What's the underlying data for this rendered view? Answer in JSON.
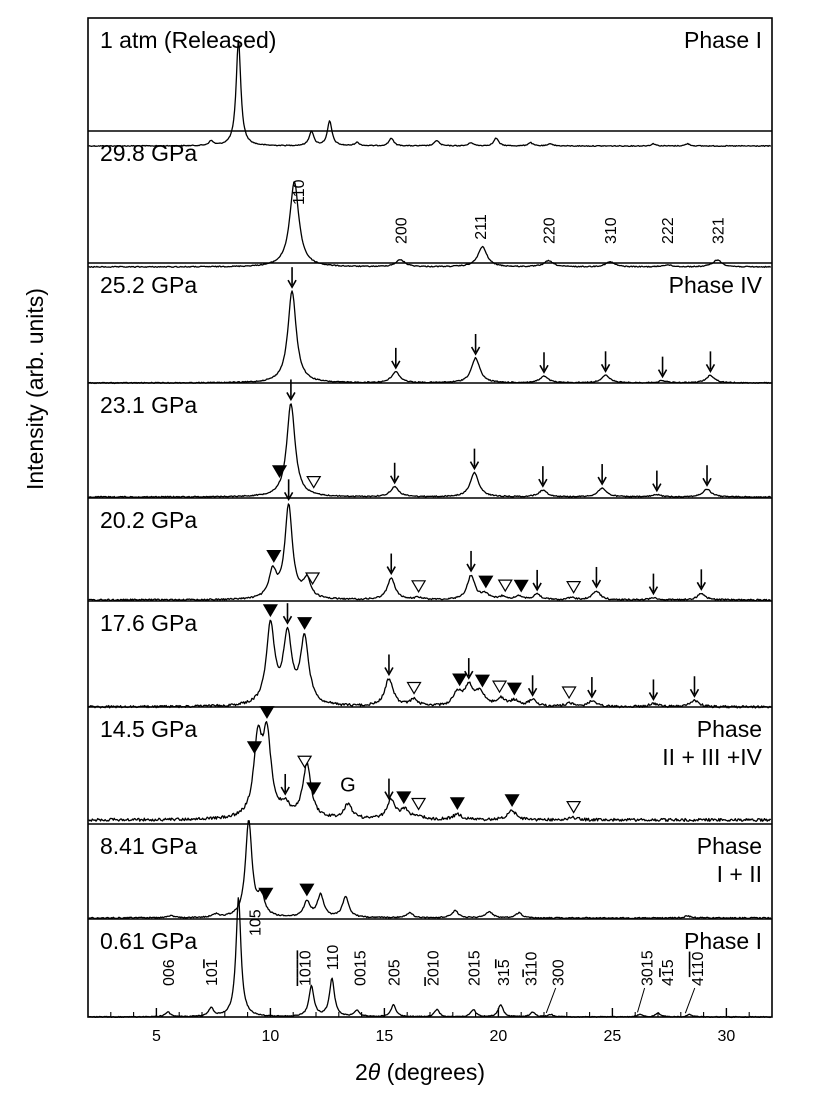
{
  "figure": {
    "ylabel": "Intensity (arb. units)",
    "xlabel_prefix": "2",
    "xlabel_theta": "θ",
    "xlabel_suffix": " (degrees)"
  },
  "chart_data": {
    "type": "line",
    "title": "",
    "xlabel": "2θ (degrees)",
    "ylabel": "Intensity (arb. units)",
    "xlim": [
      2,
      32
    ],
    "x_ticks": [
      5,
      10,
      15,
      20,
      25,
      30
    ],
    "x_tick_labels": [
      "5",
      "10",
      "15",
      "20",
      "25",
      "30"
    ],
    "series": [
      {
        "name": "1 atm (Released)",
        "phase": [
          "Phase I"
        ],
        "peaks": [
          [
            7.4,
            0.04
          ],
          [
            8.6,
            0.95
          ],
          [
            11.8,
            0.13
          ],
          [
            12.6,
            0.22
          ],
          [
            13.8,
            0.03
          ],
          [
            15.3,
            0.07
          ],
          [
            17.3,
            0.05
          ],
          [
            18.8,
            0.03
          ],
          [
            19.9,
            0.07
          ],
          [
            21.4,
            0.03
          ],
          [
            22.3,
            0.02
          ],
          [
            26.8,
            0.02
          ],
          [
            28.3,
            0.02
          ]
        ],
        "width": 0.12,
        "noise": 0.004,
        "markers": [],
        "miller": []
      },
      {
        "name": "29.8 GPa",
        "phase": [],
        "peaks": [
          [
            11.05,
            0.85
          ],
          [
            15.7,
            0.07
          ],
          [
            19.3,
            0.2
          ],
          [
            22.2,
            0.06
          ],
          [
            24.9,
            0.05
          ],
          [
            27.4,
            0.02
          ],
          [
            29.6,
            0.07
          ]
        ],
        "width": 0.24,
        "noise": 0.005,
        "markers": [],
        "miller": [
          {
            "x": 11.2,
            "text": "110",
            "rot": true,
            "tall": true
          },
          {
            "x": 15.7,
            "text": "200",
            "rot": true
          },
          {
            "x": 19.2,
            "text": "211",
            "rot": true
          },
          {
            "x": 22.2,
            "text": "220",
            "rot": true
          },
          {
            "x": 24.9,
            "text": "310",
            "rot": true
          },
          {
            "x": 27.4,
            "text": "222",
            "rot": true
          },
          {
            "x": 29.6,
            "text": "321",
            "rot": true
          }
        ]
      },
      {
        "name": "25.2 GPa",
        "phase": [
          "Phase IV"
        ],
        "peaks": [
          [
            10.95,
            0.85
          ],
          [
            15.5,
            0.1
          ],
          [
            19.0,
            0.23
          ],
          [
            22.0,
            0.06
          ],
          [
            24.7,
            0.07
          ],
          [
            27.2,
            0.02
          ],
          [
            29.3,
            0.07
          ]
        ],
        "width": 0.22,
        "noise": 0.005,
        "markers": [
          {
            "x": 10.95,
            "t": "down"
          },
          {
            "x": 15.5,
            "t": "down"
          },
          {
            "x": 19.0,
            "t": "down"
          },
          {
            "x": 22.0,
            "t": "down"
          },
          {
            "x": 24.7,
            "t": "down"
          },
          {
            "x": 27.2,
            "t": "down"
          },
          {
            "x": 29.3,
            "t": "down"
          }
        ],
        "miller": []
      },
      {
        "name": "23.1 GPa",
        "phase": [],
        "peaks": [
          [
            10.9,
            0.85
          ],
          [
            15.45,
            0.09
          ],
          [
            18.95,
            0.22
          ],
          [
            21.95,
            0.06
          ],
          [
            24.55,
            0.08
          ],
          [
            26.95,
            0.02
          ],
          [
            29.15,
            0.07
          ]
        ],
        "width": 0.22,
        "noise": 0.005,
        "markers": [
          {
            "x": 10.4,
            "t": "filled"
          },
          {
            "x": 11.9,
            "t": "open"
          },
          {
            "x": 10.9,
            "t": "down"
          },
          {
            "x": 15.45,
            "t": "down"
          },
          {
            "x": 18.95,
            "t": "down"
          },
          {
            "x": 21.95,
            "t": "down"
          },
          {
            "x": 24.55,
            "t": "down"
          },
          {
            "x": 26.95,
            "t": "down"
          },
          {
            "x": 29.15,
            "t": "down"
          }
        ],
        "miller": []
      },
      {
        "name": "20.2 GPa",
        "phase": [],
        "peaks": [
          [
            10.1,
            0.24
          ],
          [
            10.8,
            0.85
          ],
          [
            11.6,
            0.17
          ],
          [
            15.3,
            0.2
          ],
          [
            16.5,
            0.02
          ],
          [
            18.8,
            0.22
          ],
          [
            19.4,
            0.05
          ],
          [
            20.2,
            0.03
          ],
          [
            20.9,
            0.03
          ],
          [
            21.7,
            0.05
          ],
          [
            23.2,
            0.02
          ],
          [
            24.3,
            0.08
          ],
          [
            26.8,
            0.02
          ],
          [
            28.9,
            0.06
          ]
        ],
        "width": 0.2,
        "noise": 0.007,
        "markers": [
          {
            "x": 10.15,
            "t": "filled"
          },
          {
            "x": 11.85,
            "t": "open"
          },
          {
            "x": 16.5,
            "t": "open"
          },
          {
            "x": 19.45,
            "t": "filled"
          },
          {
            "x": 20.3,
            "t": "open"
          },
          {
            "x": 21.0,
            "t": "filled"
          },
          {
            "x": 23.3,
            "t": "open"
          },
          {
            "x": 10.8,
            "t": "down"
          },
          {
            "x": 15.3,
            "t": "down"
          },
          {
            "x": 18.8,
            "t": "down"
          },
          {
            "x": 21.7,
            "t": "down"
          },
          {
            "x": 24.3,
            "t": "down"
          },
          {
            "x": 26.8,
            "t": "down"
          },
          {
            "x": 28.9,
            "t": "down"
          }
        ],
        "miller": []
      },
      {
        "name": "17.6 GPa",
        "phase": [],
        "peaks": [
          [
            10.0,
            0.72
          ],
          [
            10.75,
            0.62
          ],
          [
            11.5,
            0.6
          ],
          [
            15.2,
            0.25
          ],
          [
            16.3,
            0.06
          ],
          [
            18.2,
            0.12
          ],
          [
            18.7,
            0.18
          ],
          [
            19.2,
            0.13
          ],
          [
            20.1,
            0.07
          ],
          [
            20.7,
            0.05
          ],
          [
            21.5,
            0.06
          ],
          [
            23.1,
            0.03
          ],
          [
            24.1,
            0.05
          ],
          [
            26.8,
            0.03
          ],
          [
            28.6,
            0.06
          ]
        ],
        "width": 0.22,
        "noise": 0.011,
        "markers": [
          {
            "x": 10.0,
            "t": "filled"
          },
          {
            "x": 11.5,
            "t": "filled"
          },
          {
            "x": 16.3,
            "t": "open"
          },
          {
            "x": 18.3,
            "t": "filled"
          },
          {
            "x": 19.3,
            "t": "filled"
          },
          {
            "x": 20.05,
            "t": "open"
          },
          {
            "x": 20.7,
            "t": "filled"
          },
          {
            "x": 23.1,
            "t": "open"
          },
          {
            "x": 10.75,
            "t": "down"
          },
          {
            "x": 15.2,
            "t": "down"
          },
          {
            "x": 18.7,
            "t": "down"
          },
          {
            "x": 21.5,
            "t": "down"
          },
          {
            "x": 24.1,
            "t": "down"
          },
          {
            "x": 26.8,
            "t": "down"
          },
          {
            "x": 28.6,
            "t": "down"
          }
        ],
        "miller": []
      },
      {
        "name": "14.5 GPa",
        "phase": [
          "Phase",
          "II + III +IV"
        ],
        "peaks": [
          [
            9.45,
            0.66
          ],
          [
            9.85,
            0.7
          ],
          [
            10.65,
            0.1
          ],
          [
            11.6,
            0.48
          ],
          [
            13.4,
            0.13
          ],
          [
            15.3,
            0.17
          ],
          [
            15.9,
            0.08
          ],
          [
            16.5,
            0.03
          ],
          [
            18.2,
            0.05
          ],
          [
            20.6,
            0.08
          ],
          [
            23.3,
            0.02
          ]
        ],
        "width": 0.22,
        "noise": 0.013,
        "markers": [
          {
            "x": 9.3,
            "t": "filled"
          },
          {
            "x": 9.85,
            "t": "filled"
          },
          {
            "x": 11.5,
            "t": "open"
          },
          {
            "x": 11.9,
            "t": "filled"
          },
          {
            "x": 15.85,
            "t": "filled"
          },
          {
            "x": 16.5,
            "t": "open"
          },
          {
            "x": 18.2,
            "t": "filled"
          },
          {
            "x": 20.6,
            "t": "filled"
          },
          {
            "x": 23.3,
            "t": "open"
          },
          {
            "x": 10.65,
            "t": "down"
          },
          {
            "x": 15.2,
            "t": "down"
          }
        ],
        "annotations": [
          {
            "x": 13.4,
            "text": "G"
          }
        ],
        "miller": []
      },
      {
        "name": "8.41 GPa",
        "phase": [
          "Phase",
          "I + II"
        ],
        "peaks": [
          [
            5.6,
            0.02
          ],
          [
            7.6,
            0.03
          ],
          [
            9.05,
            0.95
          ],
          [
            9.6,
            0.2
          ],
          [
            11.6,
            0.15
          ],
          [
            12.2,
            0.22
          ],
          [
            13.3,
            0.2
          ],
          [
            16.1,
            0.05
          ],
          [
            18.1,
            0.07
          ],
          [
            19.6,
            0.06
          ],
          [
            20.9,
            0.05
          ],
          [
            28.3,
            0.02
          ]
        ],
        "width": 0.17,
        "noise": 0.006,
        "markers": [
          {
            "x": 9.8,
            "t": "filled"
          },
          {
            "x": 11.6,
            "t": "filled"
          }
        ],
        "miller": []
      },
      {
        "name": "0.61 GPa",
        "phase": [
          "Phase I"
        ],
        "peaks": [
          [
            5.5,
            0.04
          ],
          [
            7.4,
            0.07
          ],
          [
            8.6,
            0.98
          ],
          [
            11.8,
            0.25
          ],
          [
            12.7,
            0.31
          ],
          [
            13.8,
            0.05
          ],
          [
            15.4,
            0.1
          ],
          [
            17.3,
            0.06
          ],
          [
            18.9,
            0.06
          ],
          [
            20.1,
            0.1
          ],
          [
            21.5,
            0.04
          ],
          [
            22.3,
            0.02
          ],
          [
            26.2,
            0.02
          ],
          [
            27.0,
            0.03
          ],
          [
            28.4,
            0.02
          ]
        ],
        "width": 0.13,
        "noise": 0.004,
        "markers": [],
        "miller": [
          {
            "x": 5.5,
            "text": "006",
            "rot": true
          },
          {
            "x": 7.4,
            "text": "101",
            "rot": true,
            "overbar": [
              2,
              3
            ]
          },
          {
            "x": 9.3,
            "text": "105",
            "rot": true,
            "tall": true
          },
          {
            "x": 11.5,
            "text": "1010",
            "rot": true,
            "overbar": [
              0,
              4
            ]
          },
          {
            "x": 12.7,
            "text": "110",
            "rot": true
          },
          {
            "x": 13.9,
            "text": "0015",
            "rot": true
          },
          {
            "x": 15.4,
            "text": "205",
            "rot": true
          },
          {
            "x": 17.1,
            "text": "2010",
            "rot": true,
            "overbar": [
              0,
              1
            ]
          },
          {
            "x": 18.9,
            "text": "2015",
            "rot": true
          },
          {
            "x": 20.2,
            "text": "315",
            "rot": true,
            "overbar": [
              2,
              3
            ]
          },
          {
            "x": 21.4,
            "text": "3110",
            "rot": true,
            "overbar": [
              1,
              2
            ]
          },
          {
            "x": 22.6,
            "text": "300",
            "rot": true,
            "leader": 22.1
          },
          {
            "x": 26.5,
            "text": "3015",
            "rot": true,
            "leader": 26.1
          },
          {
            "x": 27.4,
            "text": "415",
            "rot": true,
            "overbar": [
              1,
              2
            ]
          },
          {
            "x": 28.7,
            "text": "4110",
            "rot": true,
            "overbar": [
              1,
              4
            ],
            "leader": 28.2
          }
        ]
      }
    ]
  }
}
